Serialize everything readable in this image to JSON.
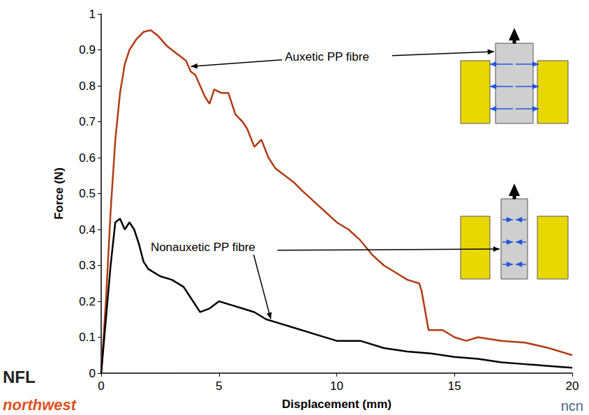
{
  "chart_data": {
    "type": "line",
    "x_label": "Displacement (mm)",
    "y_label": "Force (N)",
    "xlim": [
      0,
      20
    ],
    "xticks": [
      0,
      5,
      10,
      15,
      20
    ],
    "ylim": [
      0,
      1
    ],
    "yticks": [
      0,
      0.1,
      0.2,
      0.3,
      0.4,
      0.5,
      0.6,
      0.7,
      0.8,
      0.9,
      1
    ],
    "grid": false,
    "series": [
      {
        "name": "Auxetic PP fibre",
        "color": "#b03c14",
        "x": [
          0,
          0.2,
          0.4,
          0.6,
          0.8,
          1.0,
          1.2,
          1.5,
          1.8,
          2.1,
          2.4,
          2.8,
          3.2,
          3.6,
          3.8,
          4.0,
          4.2,
          4.4,
          4.6,
          4.8,
          5.1,
          5.4,
          5.7,
          6.0,
          6.2,
          6.5,
          6.8,
          7.1,
          7.4,
          7.8,
          8.2,
          8.5,
          9.0,
          9.5,
          10,
          10.5,
          11,
          11.5,
          12,
          12.5,
          13,
          13.5,
          13.6,
          13.9,
          14.5,
          15,
          15.5,
          16,
          17,
          18,
          19,
          20
        ],
        "values": [
          0,
          0.2,
          0.45,
          0.65,
          0.78,
          0.86,
          0.9,
          0.93,
          0.95,
          0.955,
          0.94,
          0.91,
          0.89,
          0.87,
          0.84,
          0.83,
          0.8,
          0.77,
          0.75,
          0.79,
          0.78,
          0.78,
          0.72,
          0.7,
          0.68,
          0.63,
          0.65,
          0.6,
          0.57,
          0.55,
          0.53,
          0.51,
          0.48,
          0.45,
          0.42,
          0.4,
          0.37,
          0.33,
          0.3,
          0.28,
          0.26,
          0.25,
          0.23,
          0.12,
          0.12,
          0.1,
          0.09,
          0.1,
          0.09,
          0.085,
          0.07,
          0.05
        ]
      },
      {
        "name": "Nonauxetic PP fibre",
        "color": "#000000",
        "x": [
          0,
          0.2,
          0.4,
          0.6,
          0.8,
          1.0,
          1.2,
          1.4,
          1.6,
          1.8,
          2.0,
          2.5,
          3.0,
          3.5,
          3.9,
          4.2,
          4.6,
          5,
          5.5,
          6,
          6.5,
          7,
          7.5,
          8,
          9,
          10,
          11,
          12,
          13,
          14,
          15,
          16,
          17,
          18,
          19,
          20
        ],
        "values": [
          0,
          0.15,
          0.3,
          0.42,
          0.43,
          0.4,
          0.42,
          0.4,
          0.36,
          0.31,
          0.29,
          0.27,
          0.26,
          0.24,
          0.2,
          0.17,
          0.18,
          0.2,
          0.19,
          0.18,
          0.17,
          0.15,
          0.14,
          0.13,
          0.11,
          0.09,
          0.09,
          0.07,
          0.06,
          0.055,
          0.045,
          0.04,
          0.03,
          0.025,
          0.02,
          0.015
        ]
      }
    ],
    "annotations": [
      {
        "text": "Auxetic PP fibre",
        "x": 7.8,
        "y": 0.88,
        "arrow_to": [
          3.75,
          0.85
        ]
      },
      {
        "text": "Nonauxetic PP fibre",
        "x": 2.1,
        "y": 0.35,
        "arrow_to": [
          7.2,
          0.145
        ]
      }
    ],
    "logos": [
      "NFL",
      "northwest",
      "ncn"
    ]
  }
}
